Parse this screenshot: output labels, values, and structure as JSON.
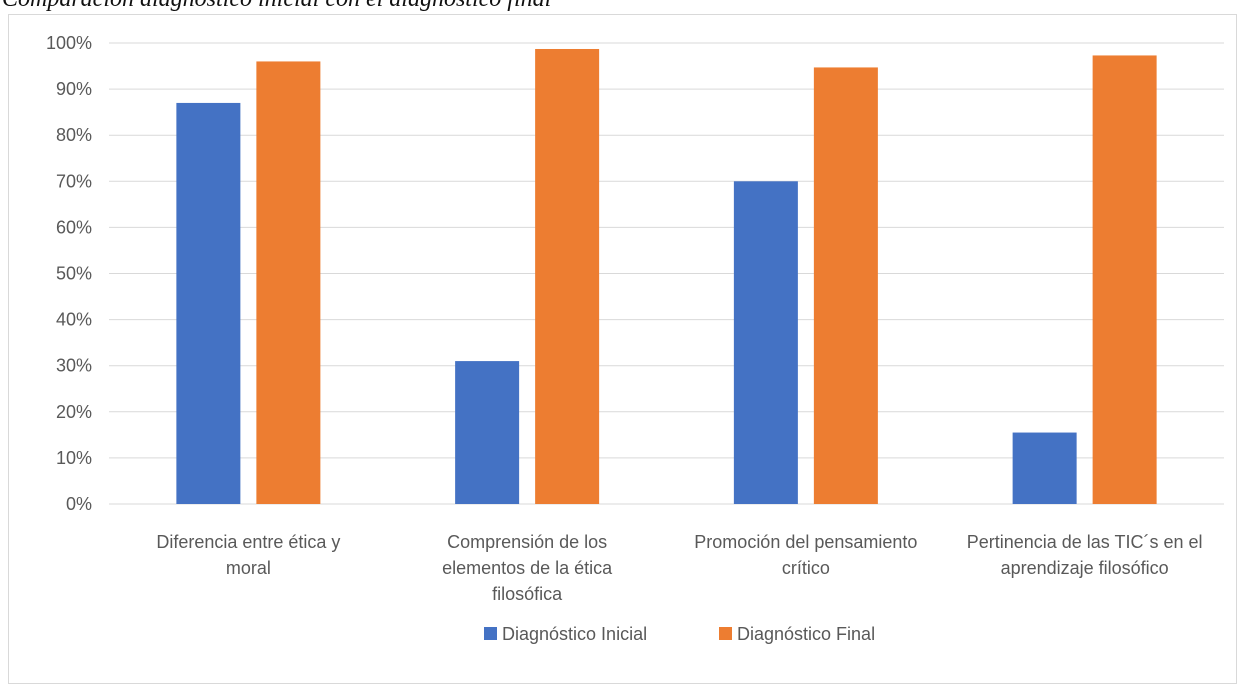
{
  "caption": "Comparación diagnóstico inicial con el diagnóstico final",
  "colors": {
    "initial": "#4472c4",
    "final": "#ed7d31",
    "grid": "#d9d9d9",
    "text": "#595959"
  },
  "chart_data": {
    "type": "bar",
    "title": "",
    "xlabel": "",
    "ylabel": "",
    "ylim": [
      0,
      100
    ],
    "y_ticks": [
      "0%",
      "10%",
      "20%",
      "30%",
      "40%",
      "50%",
      "60%",
      "70%",
      "80%",
      "90%",
      "100%"
    ],
    "grid": true,
    "legend_position": "bottom",
    "categories": [
      [
        "Diferencia entre ética y",
        "moral"
      ],
      [
        "Comprensión de los",
        "elementos de la ética",
        "filosófica"
      ],
      [
        "Promoción del pensamiento",
        "crítico"
      ],
      [
        "Pertinencia de las TIC´s en el",
        "aprendizaje filosófico"
      ]
    ],
    "series": [
      {
        "name": "Diagnóstico Inicial",
        "color": "#4472c4",
        "values": [
          87,
          31,
          70,
          15.5
        ]
      },
      {
        "name": "Diagnóstico Final",
        "color": "#ed7d31",
        "values": [
          96,
          98.7,
          94.7,
          97.3
        ]
      }
    ]
  }
}
